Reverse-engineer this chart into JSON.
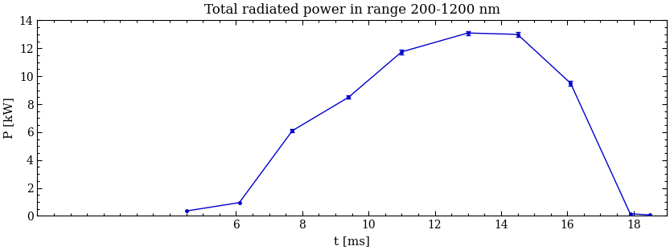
{
  "title": "Total radiated power in range 200-1200 nm",
  "xlabel": "t [ms]",
  "ylabel": "P [kW]",
  "x": [
    4.5,
    6.1,
    7.7,
    9.4,
    11.0,
    13.0,
    14.5,
    16.1,
    17.9,
    18.5
  ],
  "y": [
    0.35,
    0.95,
    6.1,
    8.5,
    11.75,
    13.1,
    13.0,
    9.5,
    0.15,
    0.07
  ],
  "yerr": [
    0.0,
    0.0,
    0.12,
    0.12,
    0.18,
    0.15,
    0.18,
    0.18,
    0.0,
    0.0
  ],
  "has_errorbar": [
    false,
    false,
    true,
    true,
    true,
    true,
    true,
    true,
    false,
    false
  ],
  "line_color": "#0000cc",
  "markersize": 2.5,
  "linewidth": 1.0,
  "xlim": [
    0,
    19.0
  ],
  "ylim": [
    0,
    14
  ],
  "xticks": [
    6,
    8,
    10,
    12,
    14,
    16,
    18
  ],
  "yticks": [
    0,
    2,
    4,
    6,
    8,
    10,
    12,
    14
  ],
  "background_color": "#ffffff",
  "axes_bg_color": "#ffffff",
  "title_fontsize": 12,
  "label_fontsize": 11,
  "tick_fontsize": 10
}
